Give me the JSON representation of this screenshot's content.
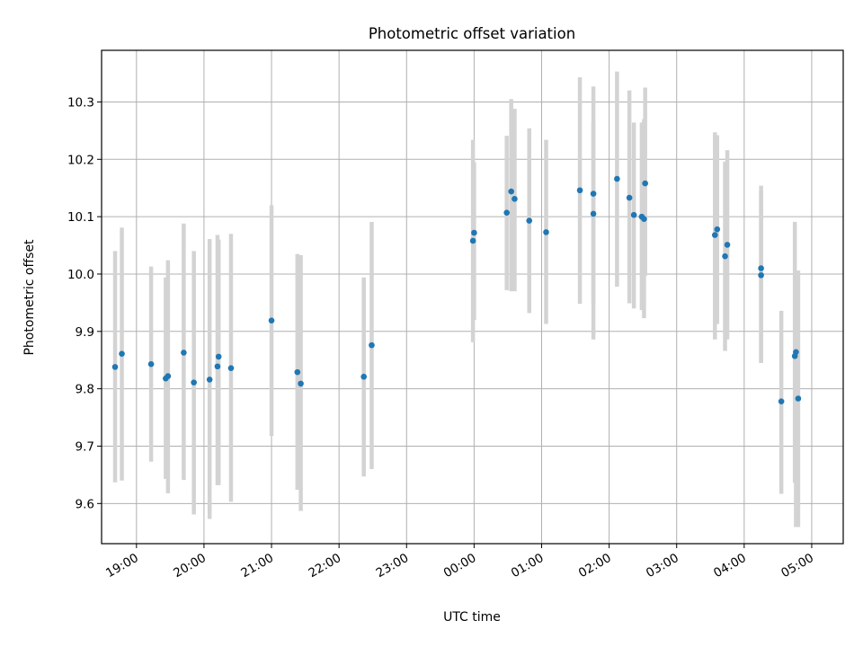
{
  "chart_data": {
    "type": "scatter",
    "title": "Photometric offset variation",
    "xlabel": "UTC time",
    "ylabel": "Photometric offset",
    "x_unit": "UTC clock time (hours, continuing past midnight)",
    "xlim": [
      "18:29",
      "05:28"
    ],
    "ylim": [
      9.53,
      10.39
    ],
    "x_ticks": [
      "19:00",
      "20:00",
      "21:00",
      "22:00",
      "23:00",
      "00:00",
      "01:00",
      "02:00",
      "03:00",
      "04:00",
      "05:00"
    ],
    "y_ticks": [
      9.6,
      9.7,
      9.8,
      9.9,
      10.0,
      10.1,
      10.2,
      10.3
    ],
    "grid": true,
    "marker_color": "#1f77b4",
    "errorbar_color": "#d3d3d3",
    "series": [
      {
        "x": [
          "18:41",
          "18:47",
          "19:13",
          "19:26",
          "19:28",
          "19:42",
          "19:51",
          "20:05",
          "20:12",
          "20:13",
          "20:24",
          "21:00",
          "21:23",
          "21:26",
          "22:22",
          "22:29",
          "23:59",
          "00:00",
          "00:29",
          "00:33",
          "00:36",
          "00:49",
          "01:04",
          "01:34",
          "01:46",
          "01:46",
          "02:07",
          "02:18",
          "02:22",
          "02:29",
          "02:31",
          "02:32",
          "03:34",
          "03:36",
          "03:43",
          "03:45",
          "04:15",
          "04:15",
          "04:33",
          "04:45",
          "04:46",
          "04:48"
        ],
        "y": [
          9.838,
          9.861,
          9.843,
          9.818,
          9.822,
          9.863,
          9.811,
          9.816,
          9.839,
          9.856,
          9.836,
          9.919,
          9.829,
          9.809,
          9.821,
          9.876,
          10.058,
          10.072,
          10.107,
          10.144,
          10.131,
          10.093,
          10.073,
          10.146,
          10.14,
          10.105,
          10.166,
          10.133,
          10.103,
          10.1,
          10.096,
          10.158,
          10.068,
          10.078,
          10.031,
          10.051,
          10.01,
          9.998,
          9.778,
          9.857,
          9.864,
          9.783
        ],
        "yerr_low": [
          9.637,
          9.64,
          9.673,
          9.643,
          9.618,
          9.641,
          9.581,
          9.573,
          9.632,
          9.632,
          9.603,
          9.718,
          9.624,
          9.587,
          9.647,
          9.66,
          9.881,
          9.92,
          9.972,
          9.97,
          9.97,
          9.932,
          9.913,
          9.948,
          9.886,
          9.949,
          9.978,
          9.949,
          9.94,
          9.937,
          9.923,
          9.997,
          9.886,
          9.913,
          9.866,
          9.886,
          9.845,
          9.845,
          9.617,
          9.636,
          9.559,
          9.559
        ],
        "yerr_high": [
          10.04,
          10.081,
          10.013,
          9.994,
          10.024,
          10.088,
          10.04,
          10.061,
          10.068,
          10.06,
          10.07,
          10.12,
          10.035,
          10.033,
          9.994,
          10.091,
          10.234,
          10.195,
          10.241,
          10.305,
          10.288,
          10.254,
          10.234,
          10.343,
          10.327,
          10.265,
          10.353,
          10.32,
          10.264,
          10.264,
          10.27,
          10.325,
          10.247,
          10.242,
          10.196,
          10.216,
          10.154,
          10.145,
          9.936,
          10.091,
          10.006,
          10.006
        ]
      }
    ]
  }
}
